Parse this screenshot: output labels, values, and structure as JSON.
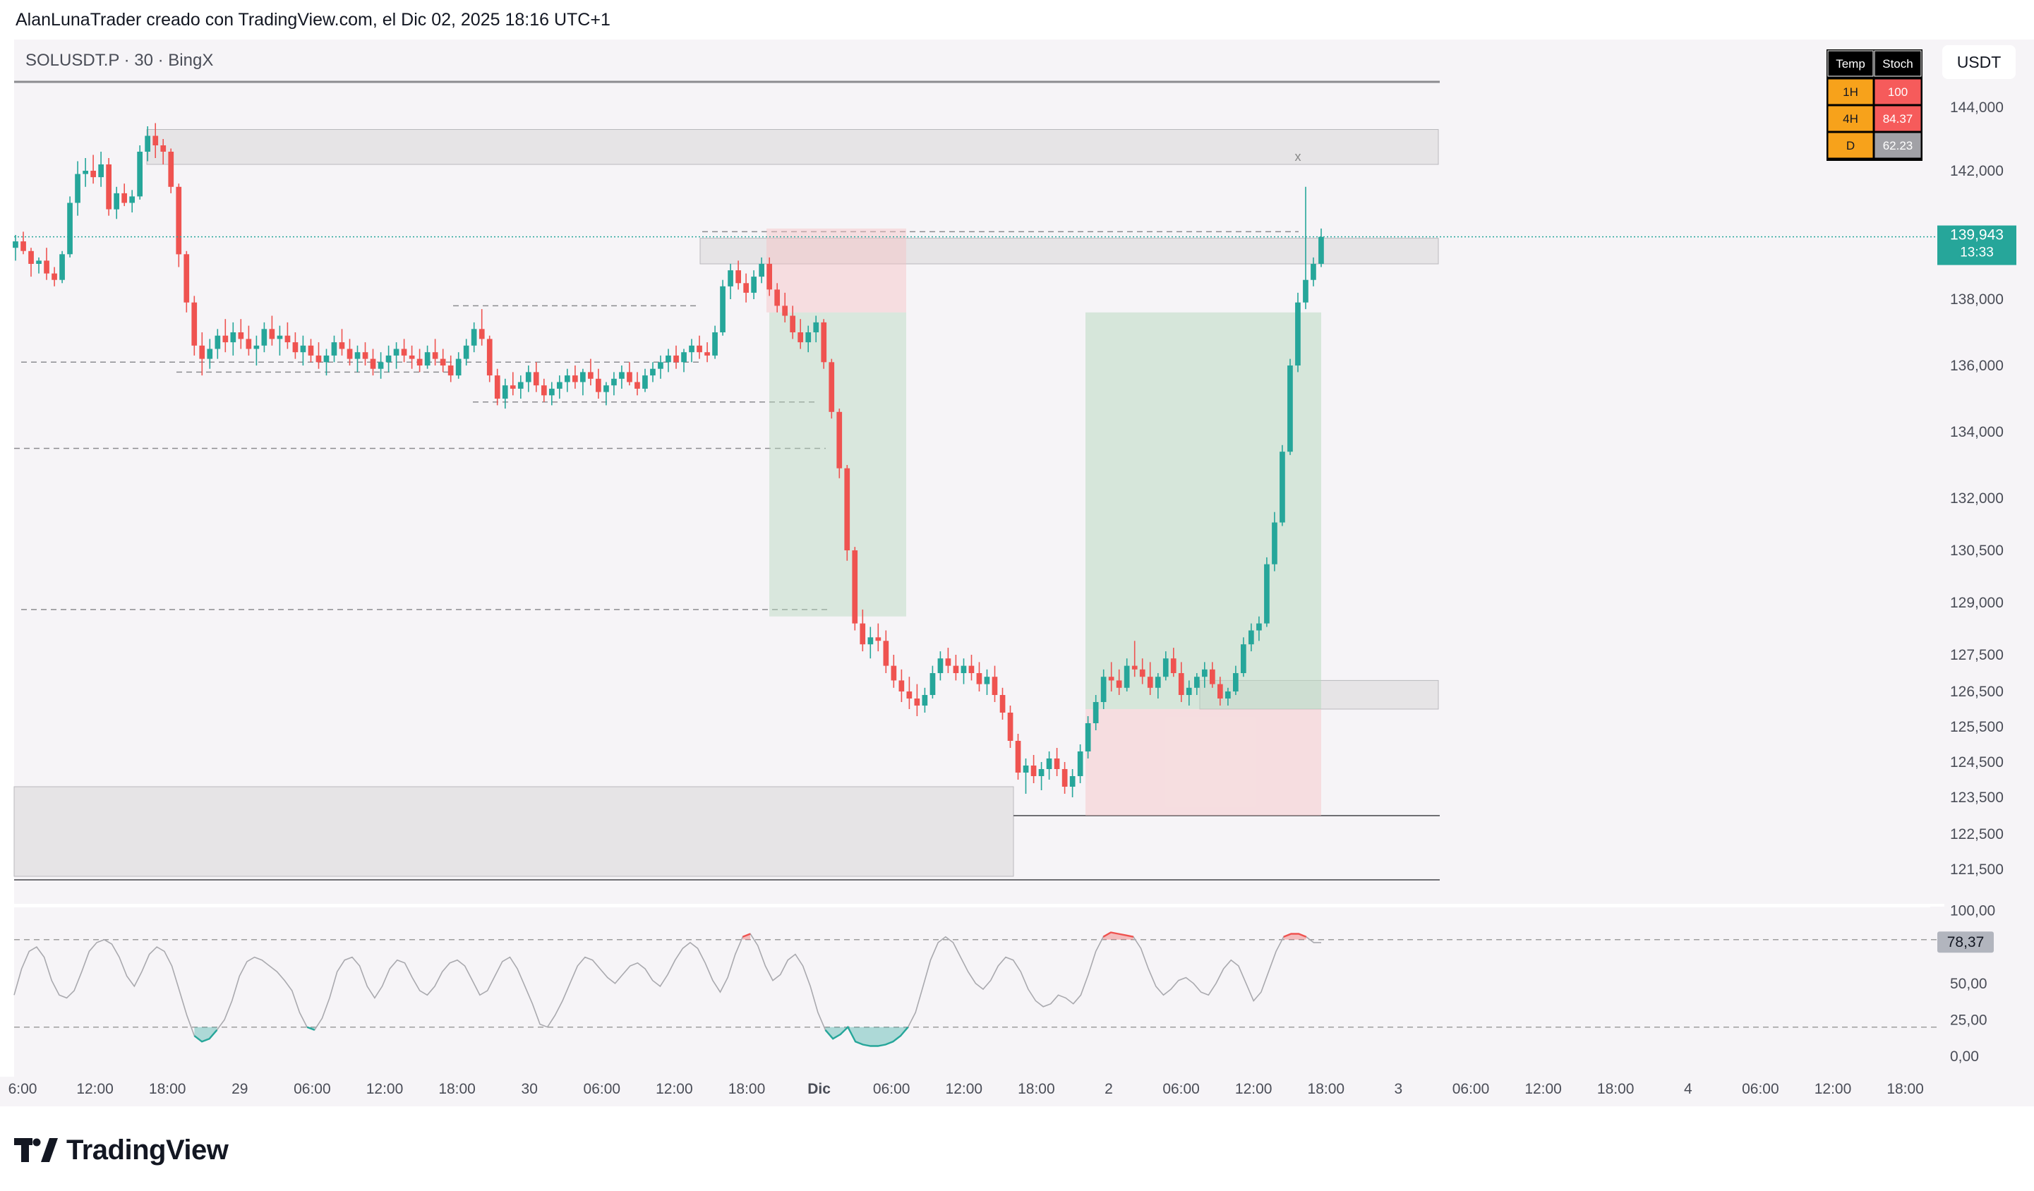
{
  "header": {
    "caption": "AlanLunaTrader creado con TradingView.com, el Dic 02, 2025 18:16 UTC+1"
  },
  "symbol": {
    "label": "SOLUSDT.P · 30 · BingX"
  },
  "currency": {
    "label": "USDT"
  },
  "price_axis": {
    "ticks": [
      {
        "label": "144,000",
        "value": 144000
      },
      {
        "label": "142,000",
        "value": 142000
      },
      {
        "label": "138,000",
        "value": 138000
      },
      {
        "label": "136,000",
        "value": 136000
      },
      {
        "label": "134,000",
        "value": 134000
      },
      {
        "label": "132,000",
        "value": 132000
      },
      {
        "label": "130,500",
        "value": 130500
      },
      {
        "label": "129,000",
        "value": 129000
      },
      {
        "label": "127,500",
        "value": 127500
      },
      {
        "label": "126,500",
        "value": 126500
      },
      {
        "label": "125,500",
        "value": 125500
      },
      {
        "label": "124,500",
        "value": 124500
      },
      {
        "label": "123,500",
        "value": 123500
      },
      {
        "label": "122,500",
        "value": 122500
      },
      {
        "label": "121,500",
        "value": 121500
      }
    ]
  },
  "last_price": {
    "value": "139,943",
    "countdown": "13:33",
    "price": 139943
  },
  "osc_axis": {
    "ticks": [
      {
        "label": "100,00",
        "value": 100
      },
      {
        "label": "50,00",
        "value": 50
      },
      {
        "label": "25,00",
        "value": 25
      },
      {
        "label": "0,00",
        "value": 0
      }
    ]
  },
  "osc_last": {
    "value": "78,37",
    "numeric": 78.37
  },
  "time_axis": {
    "labels": [
      "6:00",
      "12:00",
      "18:00",
      "29",
      "06:00",
      "12:00",
      "18:00",
      "30",
      "06:00",
      "12:00",
      "18:00",
      "Dic",
      "06:00",
      "12:00",
      "18:00",
      "2",
      "06:00",
      "12:00",
      "18:00",
      "3",
      "06:00",
      "12:00",
      "18:00",
      "4",
      "06:00",
      "12:00",
      "18:00"
    ]
  },
  "stoch_table": {
    "headers": [
      "Temp",
      "Stoch"
    ],
    "rows": [
      {
        "tf": "1H",
        "value": "100",
        "color": "#f65b5b"
      },
      {
        "tf": "4H",
        "value": "84.37",
        "color": "#f65b5b"
      },
      {
        "tf": "D",
        "value": "62.23",
        "color": "#a1a1a6"
      }
    ]
  },
  "markers": {
    "x": "x"
  },
  "brand": {
    "name": "TradingView"
  },
  "colors": {
    "bull": "#26a69a",
    "bear": "#ef5350",
    "background": "#f6f4f7",
    "grid_zone": "#e6e4e6",
    "accent_tag": "#26a69a",
    "header_orange": "#f7a21b"
  },
  "chart_data": {
    "type": "candlestick",
    "title": "SOLUSDT.P · 30 · BingX",
    "ylabel": "USDT",
    "ylim": [
      120800,
      145200
    ],
    "interval": "30m",
    "x_range": [
      "Nov 28 06:00",
      "Dec 04 18:00"
    ],
    "ohlc_approx": [
      [
        139.6,
        140.0,
        139.2,
        139.8
      ],
      [
        139.8,
        140.1,
        139.4,
        139.5
      ],
      [
        139.5,
        139.6,
        138.7,
        139.1
      ],
      [
        139.1,
        139.3,
        138.8,
        139.2
      ],
      [
        139.2,
        139.6,
        138.6,
        138.8
      ],
      [
        138.8,
        139.0,
        138.4,
        138.6
      ],
      [
        138.6,
        139.5,
        138.5,
        139.4
      ],
      [
        139.4,
        141.2,
        139.3,
        141.0
      ],
      [
        141.0,
        142.3,
        140.6,
        141.9
      ],
      [
        141.9,
        142.4,
        141.5,
        142.0
      ],
      [
        142.0,
        142.5,
        141.6,
        141.8
      ],
      [
        141.8,
        142.6,
        141.5,
        142.2
      ],
      [
        142.2,
        142.4,
        140.6,
        140.8
      ],
      [
        140.8,
        141.5,
        140.5,
        141.3
      ],
      [
        141.3,
        141.6,
        140.9,
        141.0
      ],
      [
        141.0,
        141.4,
        140.7,
        141.2
      ],
      [
        141.2,
        142.8,
        141.1,
        142.6
      ],
      [
        142.6,
        143.4,
        142.3,
        143.1
      ],
      [
        143.1,
        143.5,
        142.4,
        142.8
      ],
      [
        142.8,
        143.0,
        142.2,
        142.6
      ],
      [
        142.6,
        142.7,
        141.3,
        141.5
      ],
      [
        141.5,
        141.6,
        139.0,
        139.4
      ],
      [
        139.4,
        139.5,
        137.6,
        137.9
      ],
      [
        137.9,
        138.1,
        136.3,
        136.6
      ],
      [
        136.6,
        137.0,
        135.7,
        136.2
      ],
      [
        136.2,
        136.8,
        135.9,
        136.5
      ],
      [
        136.5,
        137.1,
        136.2,
        136.9
      ],
      [
        136.9,
        137.4,
        136.4,
        136.7
      ],
      [
        136.7,
        137.3,
        136.3,
        137.0
      ],
      [
        137.0,
        137.4,
        136.5,
        136.8
      ],
      [
        136.8,
        137.2,
        136.3,
        136.5
      ],
      [
        136.5,
        136.9,
        136.0,
        136.6
      ],
      [
        136.6,
        137.3,
        136.4,
        137.1
      ],
      [
        137.1,
        137.5,
        136.6,
        136.8
      ],
      [
        136.8,
        137.2,
        136.3,
        136.9
      ],
      [
        136.9,
        137.3,
        136.5,
        136.7
      ],
      [
        136.7,
        137.0,
        136.2,
        136.4
      ],
      [
        136.4,
        136.9,
        136.0,
        136.6
      ],
      [
        136.6,
        136.8,
        136.1,
        136.3
      ],
      [
        136.3,
        136.7,
        135.9,
        136.1
      ],
      [
        136.1,
        136.5,
        135.7,
        136.3
      ],
      [
        136.3,
        136.9,
        136.1,
        136.7
      ],
      [
        136.7,
        137.1,
        136.3,
        136.5
      ],
      [
        136.5,
        136.8,
        136.0,
        136.2
      ],
      [
        136.2,
        136.6,
        135.8,
        136.4
      ],
      [
        136.4,
        136.7,
        136.0,
        136.2
      ],
      [
        136.2,
        136.5,
        135.7,
        135.9
      ],
      [
        135.9,
        136.4,
        135.6,
        136.1
      ],
      [
        136.1,
        136.6,
        135.8,
        136.3
      ],
      [
        136.3,
        136.7,
        135.9,
        136.5
      ],
      [
        136.5,
        136.8,
        136.1,
        136.3
      ],
      [
        136.3,
        136.6,
        135.9,
        136.2
      ],
      [
        136.2,
        136.5,
        135.8,
        136.0
      ],
      [
        136.0,
        136.6,
        135.9,
        136.4
      ],
      [
        136.4,
        136.8,
        136.0,
        136.2
      ],
      [
        136.2,
        136.5,
        135.8,
        136.0
      ],
      [
        136.0,
        136.3,
        135.5,
        135.7
      ],
      [
        135.7,
        136.4,
        135.6,
        136.2
      ],
      [
        136.2,
        136.8,
        136.0,
        136.6
      ],
      [
        136.6,
        137.3,
        136.4,
        137.1
      ],
      [
        137.1,
        137.7,
        136.6,
        136.8
      ],
      [
        136.8,
        136.9,
        135.5,
        135.7
      ],
      [
        135.7,
        135.9,
        134.8,
        135.0
      ],
      [
        135.0,
        135.6,
        134.7,
        135.4
      ],
      [
        135.4,
        135.8,
        135.1,
        135.3
      ],
      [
        135.3,
        135.7,
        135.0,
        135.5
      ],
      [
        135.5,
        136.0,
        135.2,
        135.8
      ],
      [
        135.8,
        136.1,
        135.2,
        135.4
      ],
      [
        135.4,
        135.6,
        134.9,
        135.1
      ],
      [
        135.1,
        135.5,
        134.8,
        135.3
      ],
      [
        135.3,
        135.7,
        135.0,
        135.5
      ],
      [
        135.5,
        135.9,
        135.2,
        135.7
      ],
      [
        135.7,
        136.0,
        135.3,
        135.5
      ],
      [
        135.5,
        135.9,
        135.1,
        135.8
      ],
      [
        135.8,
        136.2,
        135.4,
        135.6
      ],
      [
        135.6,
        135.9,
        135.0,
        135.2
      ],
      [
        135.2,
        135.5,
        134.8,
        135.4
      ],
      [
        135.4,
        135.8,
        135.1,
        135.6
      ],
      [
        135.6,
        136.0,
        135.3,
        135.8
      ],
      [
        135.8,
        136.1,
        135.4,
        135.5
      ],
      [
        135.5,
        135.8,
        135.1,
        135.3
      ],
      [
        135.3,
        135.9,
        135.2,
        135.7
      ],
      [
        135.7,
        136.1,
        135.5,
        135.9
      ],
      [
        135.9,
        136.3,
        135.6,
        136.1
      ],
      [
        136.1,
        136.5,
        135.8,
        136.3
      ],
      [
        136.3,
        136.6,
        135.9,
        136.1
      ],
      [
        136.1,
        136.5,
        135.8,
        136.4
      ],
      [
        136.4,
        136.8,
        136.1,
        136.6
      ],
      [
        136.6,
        136.9,
        136.2,
        136.4
      ],
      [
        136.4,
        136.7,
        136.1,
        136.3
      ],
      [
        136.3,
        137.2,
        136.2,
        137.0
      ],
      [
        137.0,
        138.6,
        136.9,
        138.4
      ],
      [
        138.4,
        139.1,
        138.0,
        138.9
      ],
      [
        138.9,
        139.2,
        138.3,
        138.5
      ],
      [
        138.5,
        138.8,
        137.9,
        138.2
      ],
      [
        138.2,
        138.9,
        138.0,
        138.7
      ],
      [
        138.7,
        139.3,
        138.5,
        139.1
      ],
      [
        139.1,
        139.3,
        138.1,
        138.3
      ],
      [
        138.3,
        138.5,
        137.6,
        137.8
      ],
      [
        137.8,
        138.2,
        137.3,
        137.5
      ],
      [
        137.5,
        137.8,
        136.8,
        137.0
      ],
      [
        137.0,
        137.4,
        136.5,
        136.7
      ],
      [
        136.7,
        137.2,
        136.4,
        137.0
      ],
      [
        137.0,
        137.5,
        136.7,
        137.3
      ],
      [
        137.3,
        137.4,
        135.9,
        136.1
      ],
      [
        136.1,
        136.2,
        134.4,
        134.6
      ],
      [
        134.6,
        134.7,
        132.6,
        132.9
      ],
      [
        132.9,
        133.0,
        130.2,
        130.5
      ],
      [
        130.5,
        130.6,
        128.2,
        128.4
      ],
      [
        128.4,
        128.8,
        127.6,
        127.8
      ],
      [
        127.8,
        128.3,
        127.4,
        128.0
      ],
      [
        128.0,
        128.4,
        127.6,
        127.9
      ],
      [
        127.9,
        128.2,
        127.0,
        127.2
      ],
      [
        127.2,
        127.5,
        126.6,
        126.8
      ],
      [
        126.8,
        127.1,
        126.2,
        126.5
      ],
      [
        126.5,
        126.9,
        126.0,
        126.3
      ],
      [
        126.3,
        126.7,
        125.8,
        126.1
      ],
      [
        126.1,
        126.6,
        125.9,
        126.4
      ],
      [
        126.4,
        127.2,
        126.3,
        127.0
      ],
      [
        127.0,
        127.6,
        126.8,
        127.4
      ],
      [
        127.4,
        127.7,
        127.0,
        127.2
      ],
      [
        127.2,
        127.5,
        126.8,
        127.0
      ],
      [
        127.0,
        127.4,
        126.7,
        127.2
      ],
      [
        127.2,
        127.5,
        126.8,
        127.0
      ],
      [
        127.0,
        127.3,
        126.5,
        126.7
      ],
      [
        126.7,
        127.1,
        126.4,
        126.9
      ],
      [
        126.9,
        127.2,
        126.2,
        126.4
      ],
      [
        126.4,
        126.6,
        125.7,
        125.9
      ],
      [
        125.9,
        126.1,
        124.9,
        125.1
      ],
      [
        125.1,
        125.3,
        124.0,
        124.2
      ],
      [
        124.2,
        124.6,
        123.6,
        124.4
      ],
      [
        124.4,
        124.7,
        123.9,
        124.1
      ],
      [
        124.1,
        124.5,
        123.7,
        124.3
      ],
      [
        124.3,
        124.8,
        124.0,
        124.6
      ],
      [
        124.6,
        124.9,
        124.1,
        124.3
      ],
      [
        124.3,
        124.5,
        123.6,
        123.8
      ],
      [
        123.8,
        124.3,
        123.5,
        124.1
      ],
      [
        124.1,
        125.0,
        123.9,
        124.8
      ],
      [
        124.8,
        125.8,
        124.6,
        125.6
      ],
      [
        125.6,
        126.4,
        125.4,
        126.2
      ],
      [
        126.2,
        127.1,
        126.0,
        126.9
      ],
      [
        126.9,
        127.3,
        126.5,
        126.8
      ],
      [
        126.8,
        127.1,
        126.4,
        126.6
      ],
      [
        126.6,
        127.4,
        126.5,
        127.2
      ],
      [
        127.2,
        127.9,
        126.9,
        127.1
      ],
      [
        127.1,
        127.4,
        126.7,
        126.9
      ],
      [
        126.9,
        127.3,
        126.4,
        126.6
      ],
      [
        126.6,
        127.0,
        126.3,
        126.9
      ],
      [
        126.9,
        127.6,
        126.8,
        127.4
      ],
      [
        127.4,
        127.7,
        126.9,
        127.0
      ],
      [
        127.0,
        127.3,
        126.2,
        126.4
      ],
      [
        126.4,
        126.8,
        126.1,
        126.6
      ],
      [
        126.6,
        127.0,
        126.4,
        126.9
      ],
      [
        126.9,
        127.3,
        126.6,
        127.1
      ],
      [
        127.1,
        127.3,
        126.6,
        126.7
      ],
      [
        126.7,
        126.9,
        126.1,
        126.3
      ],
      [
        126.3,
        126.6,
        126.1,
        126.5
      ],
      [
        126.5,
        127.2,
        126.4,
        127.0
      ],
      [
        127.0,
        128.0,
        126.9,
        127.8
      ],
      [
        127.8,
        128.4,
        127.6,
        128.2
      ],
      [
        128.2,
        128.6,
        127.9,
        128.4
      ],
      [
        128.4,
        130.3,
        128.3,
        130.1
      ],
      [
        130.1,
        131.6,
        129.9,
        131.3
      ],
      [
        131.3,
        133.6,
        131.2,
        133.4
      ],
      [
        133.4,
        136.2,
        133.3,
        136.0
      ],
      [
        136.0,
        138.2,
        135.8,
        137.9
      ],
      [
        137.9,
        141.5,
        137.7,
        138.6
      ],
      [
        138.6,
        139.3,
        138.4,
        139.1
      ],
      [
        139.1,
        140.2,
        139.0,
        139.94
      ]
    ],
    "zones": [
      {
        "type": "supply",
        "from": 142200,
        "to": 143300
      },
      {
        "type": "supply",
        "from": 139100,
        "to": 139900
      },
      {
        "type": "demand",
        "from": 126000,
        "to": 126800
      },
      {
        "type": "demand",
        "from": 121300,
        "to": 123800
      }
    ],
    "levels": [
      144800,
      136100,
      134900,
      133500,
      128800,
      123000,
      121200
    ],
    "positions": [
      {
        "type": "short",
        "entry": 137600,
        "stop": 140200,
        "target": 128600
      },
      {
        "type": "long",
        "entry": 126000,
        "stop": 123000,
        "target": 137600
      }
    ],
    "stochastic": {
      "title": "Stoch",
      "ylim": [
        0,
        100
      ],
      "bands": [
        80,
        20
      ],
      "last": 78.37,
      "values": [
        42,
        60,
        72,
        75,
        68,
        52,
        42,
        40,
        45,
        58,
        72,
        78,
        80,
        77,
        68,
        55,
        48,
        58,
        70,
        75,
        72,
        62,
        45,
        28,
        14,
        10,
        12,
        18,
        25,
        38,
        55,
        65,
        68,
        66,
        62,
        58,
        52,
        45,
        30,
        20,
        18,
        26,
        40,
        58,
        66,
        68,
        62,
        48,
        40,
        48,
        60,
        66,
        64,
        54,
        45,
        42,
        48,
        58,
        64,
        66,
        62,
        52,
        42,
        45,
        55,
        65,
        68,
        60,
        48,
        36,
        22,
        20,
        28,
        38,
        50,
        62,
        68,
        66,
        60,
        54,
        50,
        56,
        62,
        64,
        60,
        52,
        48,
        56,
        66,
        74,
        78,
        74,
        64,
        52,
        44,
        54,
        70,
        82,
        84,
        76,
        62,
        52,
        56,
        66,
        70,
        62,
        48,
        30,
        18,
        12,
        15,
        20,
        10,
        8,
        7,
        7,
        8,
        10,
        14,
        20,
        30,
        48,
        66,
        78,
        82,
        78,
        68,
        58,
        50,
        46,
        52,
        62,
        68,
        66,
        58,
        46,
        38,
        34,
        36,
        42,
        40,
        36,
        42,
        56,
        72,
        82,
        85,
        84,
        83,
        82,
        74,
        60,
        48,
        42,
        46,
        52,
        54,
        50,
        44,
        42,
        50,
        60,
        66,
        62,
        50,
        38,
        44,
        58,
        72,
        82,
        84,
        84,
        82,
        78,
        78
      ]
    }
  }
}
